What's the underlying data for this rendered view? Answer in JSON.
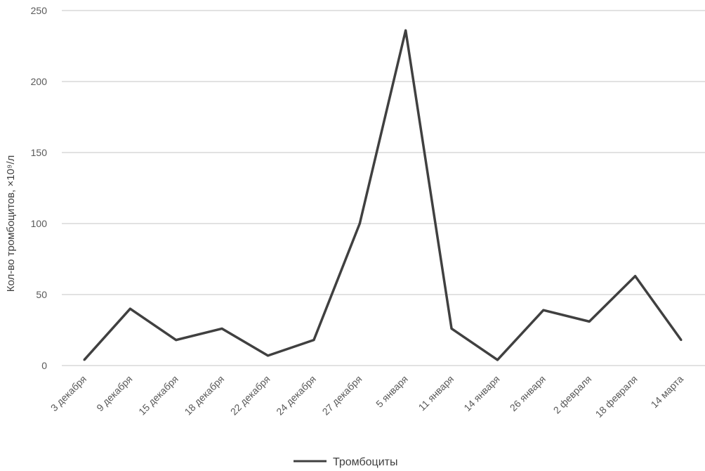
{
  "chart_data": {
    "type": "line",
    "title": "",
    "xlabel": "",
    "ylabel": "Кол-во тромбоцитов, ×10⁹/л",
    "ylim": [
      0,
      250
    ],
    "yticks": [
      "0",
      "50",
      "100",
      "150",
      "200",
      "250"
    ],
    "grid": true,
    "legend_position": "bottom",
    "categories": [
      "3 декабря",
      "9 декабря",
      "15 декабря",
      "18 декабря",
      "22 декабря",
      "24 декабря",
      "27 декабря",
      "5 января",
      "11 января",
      "14 января",
      "26 января",
      "2 февраля",
      "18 февраля",
      "14 марта"
    ],
    "series": [
      {
        "name": "Тромбоциты",
        "color": "#404040",
        "values": [
          4,
          40,
          18,
          26,
          7,
          18,
          100,
          236,
          26,
          4,
          39,
          31,
          63,
          18
        ]
      }
    ]
  }
}
